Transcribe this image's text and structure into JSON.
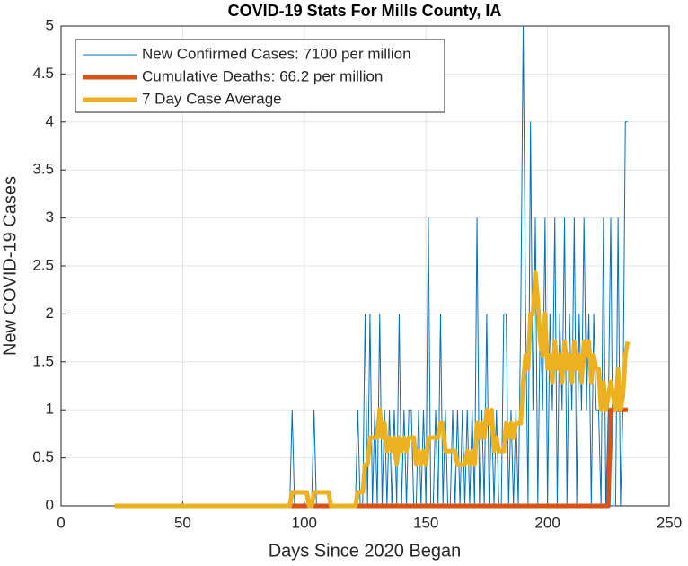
{
  "chart_data": {
    "type": "line",
    "title": "COVID-19 Stats For Mills County, IA",
    "xlabel": "Days Since 2020 Began",
    "ylabel": "New COVID-19 Cases",
    "xlim": [
      0,
      250
    ],
    "xticks": [
      0,
      50,
      100,
      150,
      200,
      250
    ],
    "ylim": [
      0,
      5
    ],
    "yticks": [
      0,
      0.5,
      1,
      1.5,
      2,
      2.5,
      3,
      3.5,
      4,
      4.5,
      5
    ],
    "grid": true,
    "legend": "upper-left",
    "x": [
      22,
      23,
      24,
      25,
      26,
      27,
      28,
      29,
      30,
      31,
      32,
      33,
      34,
      35,
      36,
      37,
      38,
      39,
      40,
      41,
      42,
      43,
      44,
      45,
      46,
      47,
      48,
      49,
      50,
      51,
      52,
      53,
      54,
      55,
      56,
      57,
      58,
      59,
      60,
      61,
      62,
      63,
      64,
      65,
      66,
      67,
      68,
      69,
      70,
      71,
      72,
      73,
      74,
      75,
      76,
      77,
      78,
      79,
      80,
      81,
      82,
      83,
      84,
      85,
      86,
      87,
      88,
      89,
      90,
      91,
      92,
      93,
      94,
      95,
      96,
      97,
      98,
      99,
      100,
      101,
      102,
      103,
      104,
      105,
      106,
      107,
      108,
      109,
      110,
      111,
      112,
      113,
      114,
      115,
      116,
      117,
      118,
      119,
      120,
      121,
      122,
      123,
      124,
      125,
      126,
      127,
      128,
      129,
      130,
      131,
      132,
      133,
      134,
      135,
      136,
      137,
      138,
      139,
      140,
      141,
      142,
      143,
      144,
      145,
      146,
      147,
      148,
      149,
      150,
      151,
      152,
      153,
      154,
      155,
      156,
      157,
      158,
      159,
      160,
      161,
      162,
      163,
      164,
      165,
      166,
      167,
      168,
      169,
      170,
      171,
      172,
      173,
      174,
      175,
      176,
      177,
      178,
      179,
      180,
      181,
      182,
      183,
      184,
      185,
      186,
      187,
      188,
      189,
      190,
      191,
      192,
      193,
      194,
      195,
      196,
      197,
      198,
      199,
      200,
      201,
      202,
      203,
      204,
      205,
      206,
      207,
      208,
      209,
      210,
      211,
      212,
      213,
      214,
      215,
      216,
      217,
      218,
      219,
      220,
      221,
      222,
      223,
      224,
      225,
      226,
      227,
      228,
      229,
      230,
      231,
      232,
      233
    ],
    "series": [
      {
        "name": "New Confirmed Cases: 7100 per million",
        "color": "#0072BD",
        "width": 1,
        "values": [
          0,
          0,
          0,
          0,
          0,
          0,
          0,
          0,
          0,
          0,
          0,
          0,
          0,
          0,
          0,
          0,
          0,
          0,
          0,
          0,
          0,
          0,
          0,
          0,
          0,
          0,
          0,
          0,
          0,
          0,
          0,
          0,
          0,
          0,
          0,
          0,
          0,
          0,
          0,
          0,
          0,
          0,
          0,
          0,
          0,
          0,
          0,
          0,
          0,
          0,
          0,
          0,
          0,
          0,
          0,
          0,
          0,
          0,
          0,
          0,
          0,
          0,
          0,
          0,
          0,
          0,
          0,
          0,
          0,
          0,
          0,
          0,
          0,
          1,
          0,
          0,
          0,
          0,
          0,
          0,
          0,
          0,
          1,
          0,
          0,
          0,
          0,
          0,
          0,
          0,
          0,
          0,
          0,
          0,
          0,
          0,
          0,
          0,
          0,
          0,
          1,
          0,
          0,
          2,
          0,
          2,
          0,
          1,
          0,
          2,
          0,
          1,
          0,
          1,
          0,
          1,
          0,
          2,
          0,
          1,
          0,
          1,
          1,
          0,
          0,
          1,
          0,
          1,
          0,
          3,
          0,
          0,
          1,
          0,
          2,
          0,
          1,
          0,
          0,
          1,
          0,
          1,
          0,
          1,
          0,
          1,
          0,
          1,
          0,
          3,
          0,
          1,
          0,
          2,
          0,
          1,
          0,
          1,
          0,
          0,
          2,
          2,
          0,
          1,
          0,
          1,
          0,
          2,
          5,
          2,
          0,
          4,
          1,
          3,
          0,
          2,
          1,
          3,
          0,
          2,
          1,
          3,
          0,
          2,
          1,
          3,
          0,
          2,
          1,
          3,
          0,
          2,
          1,
          3,
          1,
          2,
          0,
          2,
          1,
          1,
          0,
          3,
          0,
          1,
          3,
          0,
          0,
          3,
          0,
          1,
          4,
          4
        ]
      },
      {
        "name": "Cumulative Deaths: 66.2 per million",
        "color": "#D95319",
        "width": 5,
        "values": [
          0,
          0,
          0,
          0,
          0,
          0,
          0,
          0,
          0,
          0,
          0,
          0,
          0,
          0,
          0,
          0,
          0,
          0,
          0,
          0,
          0,
          0,
          0,
          0,
          0,
          0,
          0,
          0,
          0,
          0,
          0,
          0,
          0,
          0,
          0,
          0,
          0,
          0,
          0,
          0,
          0,
          0,
          0,
          0,
          0,
          0,
          0,
          0,
          0,
          0,
          0,
          0,
          0,
          0,
          0,
          0,
          0,
          0,
          0,
          0,
          0,
          0,
          0,
          0,
          0,
          0,
          0,
          0,
          0,
          0,
          0,
          0,
          0,
          0,
          0,
          0,
          0,
          0,
          0,
          0,
          0,
          0,
          0,
          0,
          0,
          0,
          0,
          0,
          0,
          0,
          0,
          0,
          0,
          0,
          0,
          0,
          0,
          0,
          0,
          0,
          0,
          0,
          0,
          0,
          0,
          0,
          0,
          0,
          0,
          0,
          0,
          0,
          0,
          0,
          0,
          0,
          0,
          0,
          0,
          0,
          0,
          0,
          0,
          0,
          0,
          0,
          0,
          0,
          0,
          0,
          0,
          0,
          0,
          0,
          0,
          0,
          0,
          0,
          0,
          0,
          0,
          0,
          0,
          0,
          0,
          0,
          0,
          0,
          0,
          0,
          0,
          0,
          0,
          0,
          0,
          0,
          0,
          0,
          0,
          0,
          0,
          0,
          0,
          0,
          0,
          0,
          0,
          0,
          0,
          0,
          0,
          0,
          0,
          0,
          0,
          0,
          0,
          0,
          0,
          0,
          0,
          0,
          0,
          0,
          0,
          0,
          0,
          0,
          0,
          0,
          0,
          0,
          0,
          0,
          0,
          0,
          0,
          0,
          0,
          0,
          0,
          0,
          0,
          0,
          1,
          1,
          1,
          1,
          1,
          1,
          1,
          1
        ]
      },
      {
        "name": "7 Day Case Average",
        "color": "#EDB120",
        "width": 5,
        "values": [
          0,
          0,
          0,
          0,
          0,
          0,
          0,
          0,
          0,
          0,
          0,
          0,
          0,
          0,
          0,
          0,
          0,
          0,
          0,
          0,
          0,
          0,
          0,
          0,
          0,
          0,
          0,
          0,
          0,
          0,
          0,
          0,
          0,
          0,
          0,
          0,
          0,
          0,
          0,
          0,
          0,
          0,
          0,
          0,
          0,
          0,
          0,
          0,
          0,
          0,
          0,
          0,
          0,
          0,
          0,
          0,
          0,
          0,
          0,
          0,
          0,
          0,
          0,
          0,
          0,
          0,
          0,
          0,
          0,
          0,
          0,
          0,
          0,
          0.14,
          0.14,
          0.14,
          0.14,
          0.14,
          0.14,
          0.14,
          0,
          0,
          0.14,
          0.14,
          0.14,
          0.14,
          0.14,
          0.14,
          0.14,
          0,
          0,
          0,
          0,
          0,
          0,
          0,
          0,
          0,
          0,
          0,
          0.14,
          0.14,
          0.14,
          0.43,
          0.43,
          0.71,
          0.71,
          0.71,
          0.71,
          1,
          0.71,
          0.86,
          0.57,
          0.71,
          0.57,
          0.71,
          0.43,
          0.71,
          0.57,
          0.71,
          0.57,
          0.71,
          0.71,
          0.71,
          0.43,
          0.57,
          0.43,
          0.57,
          0.43,
          0.71,
          0.71,
          0.71,
          0.71,
          0.71,
          0.86,
          0.86,
          0.57,
          0.57,
          0.57,
          0.57,
          0.57,
          0.43,
          0.43,
          0.43,
          0.43,
          0.57,
          0.43,
          0.57,
          0.43,
          0.86,
          0.71,
          0.86,
          0.71,
          1,
          0.86,
          1,
          0.57,
          0.71,
          0.57,
          0.57,
          0.57,
          0.86,
          0.71,
          0.86,
          0.71,
          0.86,
          0.86,
          0.86,
          1.29,
          1.57,
          1.43,
          2,
          2,
          2.43,
          2.14,
          1.71,
          1.57,
          2,
          1.43,
          1.57,
          1.29,
          1.71,
          1.43,
          1.57,
          1.29,
          1.71,
          1.43,
          1.57,
          1.29,
          1.71,
          1.43,
          1.57,
          1.29,
          1.71,
          1.57,
          1.71,
          1.29,
          1.57,
          1.43,
          1.43,
          1,
          1.29,
          1,
          1.14,
          1.29,
          1.14,
          1,
          1.43,
          1,
          1.14,
          1.57,
          1.71
        ]
      }
    ]
  }
}
